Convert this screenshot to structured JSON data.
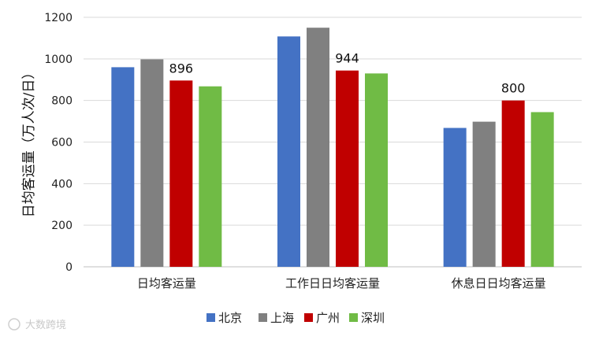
{
  "chart_data": {
    "type": "bar",
    "title": "",
    "xlabel": "",
    "ylabel": "日均客运量（万人次/日）",
    "ylim": [
      0,
      1200
    ],
    "yticks": [
      0,
      200,
      400,
      600,
      800,
      1000,
      1200
    ],
    "grid": true,
    "legend_position": "bottom",
    "categories": [
      "日均客运量",
      "工作日日均客运量",
      "休息日日均客运量"
    ],
    "series": [
      {
        "name": "北京",
        "color": "#4472C4",
        "values": [
          960,
          1108,
          668
        ]
      },
      {
        "name": "上海",
        "color": "#808080",
        "values": [
          998,
          1150,
          698
        ]
      },
      {
        "name": "广州",
        "color": "#C00000",
        "values": [
          896,
          944,
          800
        ]
      },
      {
        "name": "深圳",
        "color": "#70BB45",
        "values": [
          868,
          930,
          744
        ]
      }
    ],
    "data_labels": [
      {
        "series": "广州",
        "category": "日均客运量",
        "text": "896"
      },
      {
        "series": "广州",
        "category": "工作日日均客运量",
        "text": "944"
      },
      {
        "series": "广州",
        "category": "休息日日均客运量",
        "text": "800"
      }
    ]
  },
  "watermark": {
    "text": "大数跨境"
  }
}
